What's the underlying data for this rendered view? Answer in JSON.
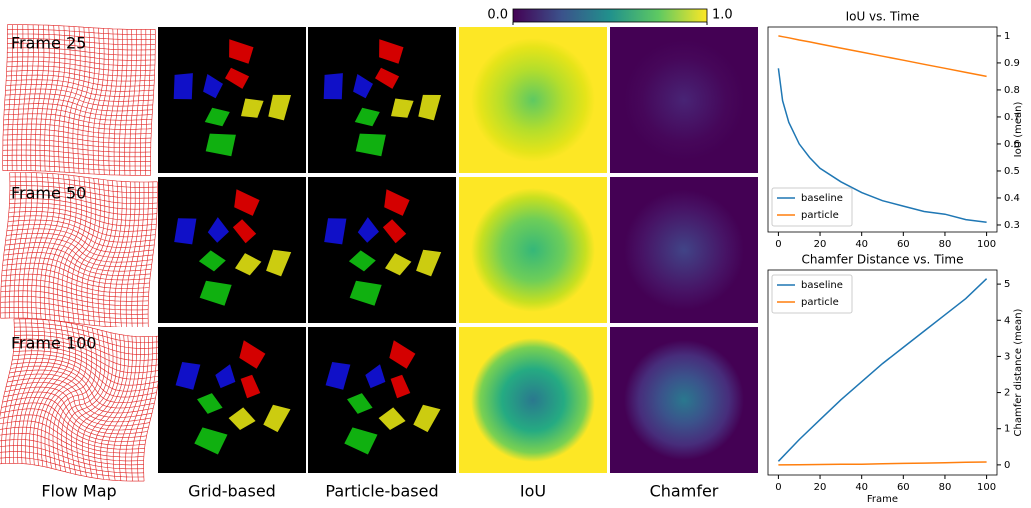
{
  "panels": {
    "columns": [
      "Flow Map",
      "Grid-based",
      "Particle-based",
      "IoU",
      "Chamfer"
    ],
    "rows": [
      "Frame 25",
      "Frame 50",
      "Frame 100"
    ]
  },
  "colorbar": {
    "lim": [
      0,
      1
    ],
    "ticks": [
      {
        "value": 0,
        "label": "0.0"
      },
      {
        "value": 1,
        "label": "1.0"
      }
    ]
  },
  "chart_data": [
    {
      "type": "line",
      "title": "IoU vs. Time",
      "ylabel": "IoU (mean)",
      "x": [
        0,
        2,
        5,
        10,
        15,
        20,
        30,
        40,
        50,
        60,
        70,
        80,
        90,
        100
      ],
      "series": [
        {
          "name": "baseline",
          "color": "#1f77b4",
          "values": [
            0.88,
            0.76,
            0.68,
            0.6,
            0.55,
            0.51,
            0.46,
            0.42,
            0.39,
            0.37,
            0.35,
            0.34,
            0.32,
            0.31
          ]
        },
        {
          "name": "particle",
          "color": "#ff7f0e",
          "values": [
            1.0,
            0.997,
            0.993,
            0.985,
            0.978,
            0.97,
            0.955,
            0.94,
            0.925,
            0.91,
            0.895,
            0.88,
            0.865,
            0.85
          ]
        }
      ],
      "xlim": [
        -5,
        105
      ],
      "ylim": [
        0.274,
        1.033
      ],
      "xticks": [
        0,
        20,
        40,
        60,
        80,
        100
      ],
      "yticks": [
        0.3,
        0.4,
        0.5,
        0.6,
        0.7,
        0.8,
        0.9,
        1.0
      ],
      "legend": "lower left"
    },
    {
      "type": "line",
      "title": "Chamfer Distance vs. Time",
      "ylabel": "Chamfer distance (mean)",
      "xlabel": "Frame",
      "x": [
        0,
        10,
        20,
        30,
        40,
        50,
        60,
        70,
        80,
        90,
        100
      ],
      "series": [
        {
          "name": "baseline",
          "color": "#1f77b4",
          "values": [
            0.1,
            0.7,
            1.25,
            1.8,
            2.3,
            2.8,
            3.25,
            3.7,
            4.15,
            4.6,
            5.15
          ]
        },
        {
          "name": "particle",
          "color": "#ff7f0e",
          "values": [
            0.0,
            0.005,
            0.01,
            0.015,
            0.02,
            0.03,
            0.04,
            0.05,
            0.06,
            0.07,
            0.08
          ]
        }
      ],
      "xlim": [
        -5,
        105
      ],
      "ylim": [
        -0.28,
        5.39
      ],
      "xticks": [
        0,
        20,
        40,
        60,
        80,
        100
      ],
      "yticks": [
        0,
        1,
        2,
        3,
        4,
        5
      ],
      "legend": "upper left"
    }
  ]
}
